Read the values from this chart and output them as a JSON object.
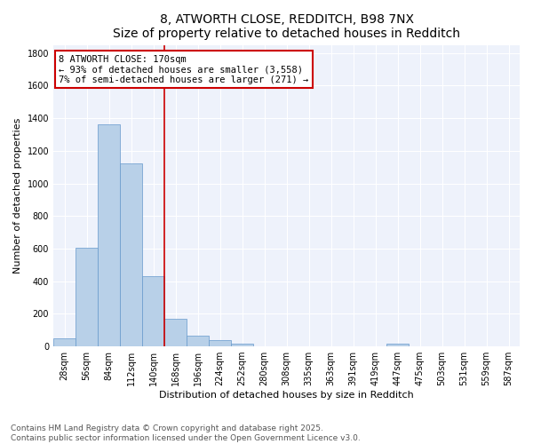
{
  "title_line1": "8, ATWORTH CLOSE, REDDITCH, B98 7NX",
  "title_line2": "Size of property relative to detached houses in Redditch",
  "xlabel": "Distribution of detached houses by size in Redditch",
  "ylabel": "Number of detached properties",
  "bin_labels": [
    "28sqm",
    "56sqm",
    "84sqm",
    "112sqm",
    "140sqm",
    "168sqm",
    "196sqm",
    "224sqm",
    "252sqm",
    "280sqm",
    "308sqm",
    "335sqm",
    "363sqm",
    "391sqm",
    "419sqm",
    "447sqm",
    "475sqm",
    "503sqm",
    "531sqm",
    "559sqm",
    "587sqm"
  ],
  "bar_values": [
    50,
    605,
    1365,
    1125,
    430,
    170,
    65,
    40,
    15,
    0,
    0,
    0,
    0,
    0,
    0,
    15,
    0,
    0,
    0,
    0,
    0
  ],
  "bar_color": "#b8d0e8",
  "bar_edge_color": "#6699cc",
  "vline_x": 5,
  "vline_color": "#cc0000",
  "annotation_text": "8 ATWORTH CLOSE: 170sqm\n← 93% of detached houses are smaller (3,558)\n7% of semi-detached houses are larger (271) →",
  "annotation_box_color": "#cc0000",
  "annotation_text_color": "#000000",
  "ylim": [
    0,
    1850
  ],
  "yticks": [
    0,
    200,
    400,
    600,
    800,
    1000,
    1200,
    1400,
    1600,
    1800
  ],
  "background_color": "#eef2fb",
  "grid_color": "#ffffff",
  "footer_line1": "Contains HM Land Registry data © Crown copyright and database right 2025.",
  "footer_line2": "Contains public sector information licensed under the Open Government Licence v3.0.",
  "title_fontsize": 10,
  "axis_label_fontsize": 8,
  "tick_fontsize": 7,
  "annotation_fontsize": 7.5,
  "footer_fontsize": 6.5
}
